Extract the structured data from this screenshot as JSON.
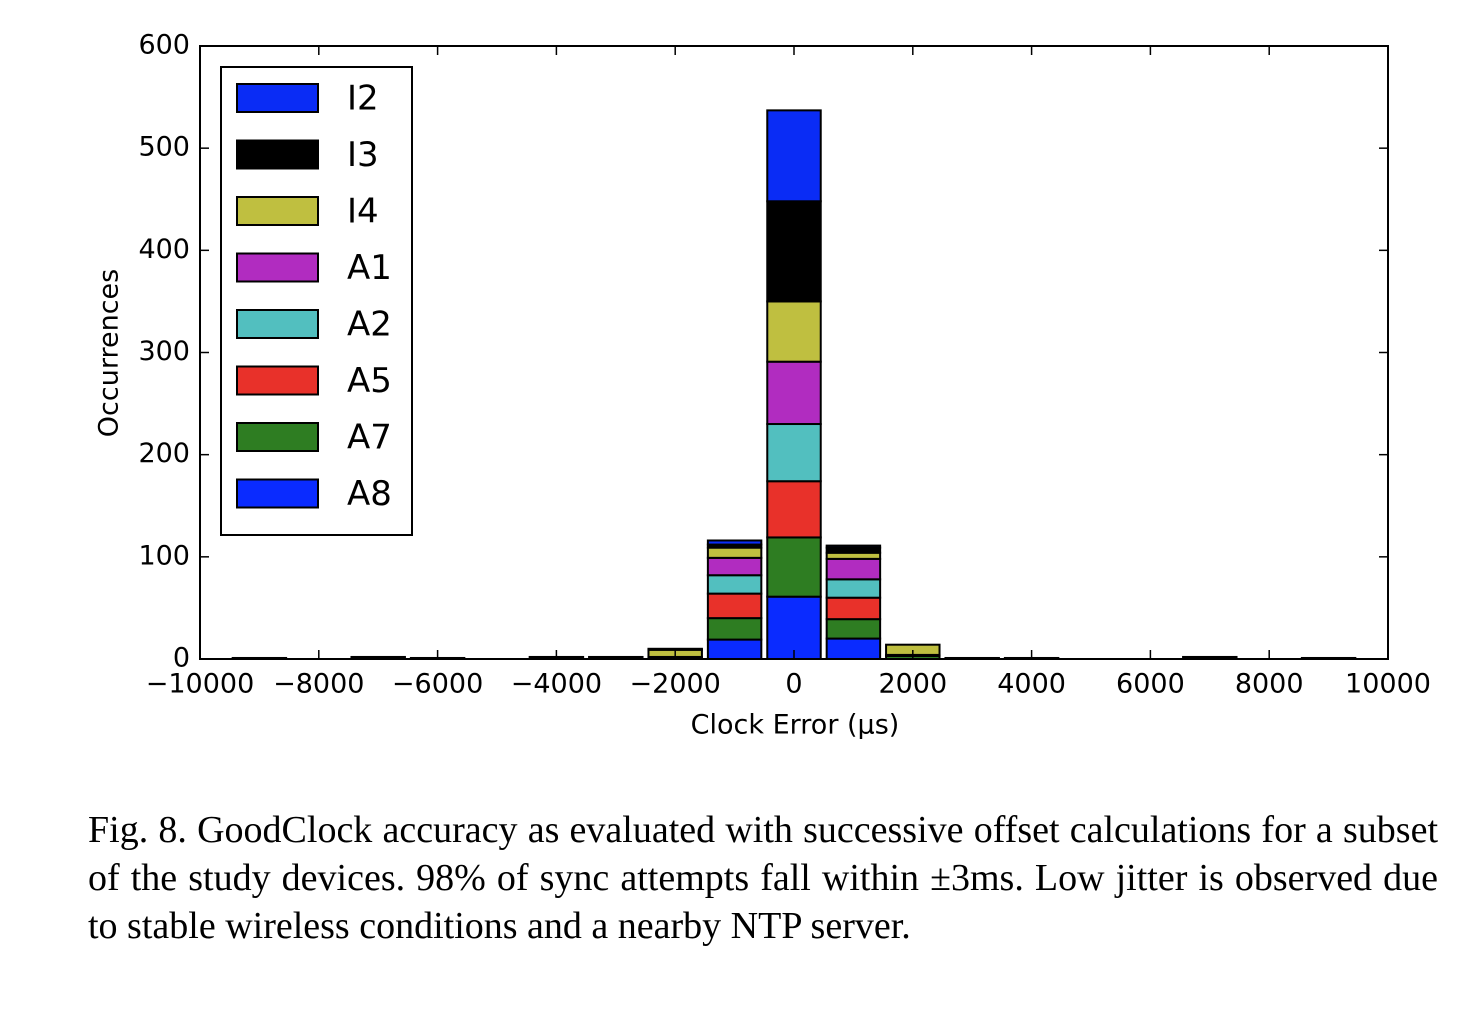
{
  "chart_data": {
    "type": "stacked_histogram",
    "xlabel": "Clock Error (μs)",
    "ylabel": "Occurrences",
    "bins": [
      -9500,
      -8500,
      -7500,
      -6500,
      -5500,
      -4500,
      -3500,
      -2500,
      -1500,
      -500,
      500,
      1500,
      2500,
      3500,
      4500,
      5500,
      6500,
      7500,
      8500,
      9500
    ],
    "series": [
      {
        "name": "I2",
        "color": "#0a2cf5",
        "values": [
          0,
          0,
          0,
          0,
          0,
          0,
          0,
          0,
          4,
          89,
          2,
          0,
          0,
          0,
          0,
          0,
          0,
          0,
          0
        ]
      },
      {
        "name": "I3",
        "color": "#000000",
        "values": [
          1,
          0,
          2,
          1,
          0,
          2,
          2,
          1,
          3,
          98,
          5,
          0,
          1,
          1,
          0,
          0,
          2,
          0,
          1
        ]
      },
      {
        "name": "I4",
        "color": "#bfbf40",
        "values": [
          0,
          0,
          0,
          0,
          0,
          0,
          0,
          7,
          10,
          59,
          6,
          10,
          0,
          0,
          0,
          0,
          0,
          0,
          0
        ]
      },
      {
        "name": "A1",
        "color": "#b12cc0",
        "values": [
          0,
          0,
          0,
          0,
          0,
          0,
          0,
          0,
          17,
          61,
          20,
          0,
          0,
          0,
          0,
          0,
          0,
          0,
          0
        ]
      },
      {
        "name": "A2",
        "color": "#52bfbf",
        "values": [
          0,
          0,
          0,
          0,
          0,
          0,
          0,
          0,
          18,
          56,
          18,
          0,
          0,
          0,
          0,
          0,
          0,
          0,
          0
        ]
      },
      {
        "name": "A5",
        "color": "#e8312a",
        "values": [
          0,
          0,
          0,
          0,
          0,
          0,
          0,
          0,
          24,
          55,
          21,
          1,
          0,
          0,
          0,
          0,
          0,
          0,
          0
        ]
      },
      {
        "name": "A7",
        "color": "#2e7d22",
        "values": [
          0,
          0,
          0,
          0,
          0,
          0,
          0,
          2,
          21,
          58,
          19,
          3,
          0,
          0,
          0,
          0,
          0,
          0,
          0
        ]
      },
      {
        "name": "A8",
        "color": "#0a2bff",
        "values": [
          0,
          0,
          0,
          0,
          0,
          0,
          0,
          0,
          19,
          61,
          20,
          0,
          0,
          0,
          0,
          0,
          0,
          0,
          0
        ]
      }
    ],
    "xlim": [
      -10000,
      10000
    ],
    "xticks": [
      {
        "value": -10000,
        "label": "−10000"
      },
      {
        "value": -8000,
        "label": "−8000"
      },
      {
        "value": -6000,
        "label": "−6000"
      },
      {
        "value": -4000,
        "label": "−4000"
      },
      {
        "value": -2000,
        "label": "−2000"
      },
      0,
      2000,
      4000,
      6000,
      8000,
      10000
    ],
    "ylim": [
      0,
      600
    ],
    "yticks": [
      0,
      100,
      200,
      300,
      400,
      500,
      600
    ],
    "legend": "upper left"
  },
  "caption": "Fig. 8.  GoodClock accuracy as evaluated with successive offset calculations for a subset of the study devices. 98% of sync attempts fall within ±3ms. Low jitter is observed due to stable wireless conditions and a nearby NTP server."
}
